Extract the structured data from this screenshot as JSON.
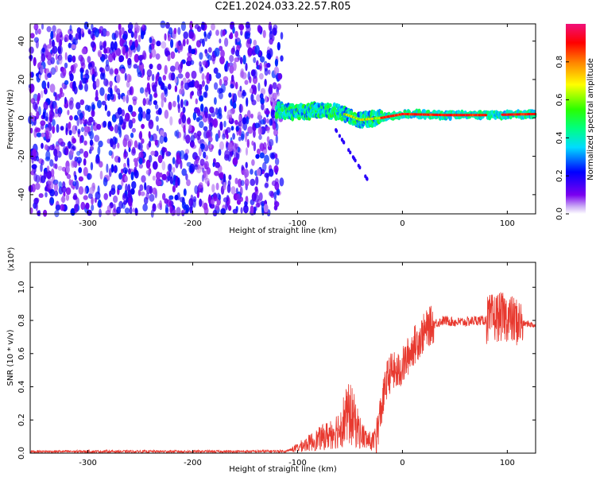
{
  "title": "C2E1.2024.033.22.57.R05",
  "chart_data": [
    {
      "type": "heatmap",
      "xlabel": "Height of straight line (km)",
      "ylabel": "Frequency (Hz)",
      "xlim": [
        -355,
        127
      ],
      "ylim": [
        -50,
        49
      ],
      "xticks": [
        -300,
        -200,
        -100,
        0,
        100
      ],
      "xtick_labels": [
        "-300",
        "-200",
        "-100",
        "0",
        "100"
      ],
      "yticks": [
        -40,
        -20,
        0,
        20,
        40
      ],
      "ytick_labels": [
        "-40",
        "-20",
        "0",
        "20",
        "40"
      ],
      "colorbar": {
        "label": "Normalized spectral amplitude",
        "range": [
          0,
          1
        ],
        "ticks": [
          0.0,
          0.2,
          0.4,
          0.6,
          0.8
        ],
        "tick_labels": [
          "0.0",
          "0.2",
          "0.4",
          "0.6",
          "0.8"
        ]
      },
      "regions": [
        {
          "name": "noise",
          "x": [
            -355,
            -115
          ],
          "freq": [
            -50,
            49
          ],
          "amplitude": [
            0.05,
            0.25
          ]
        },
        {
          "name": "signal-band",
          "x": [
            -120,
            127
          ],
          "center_freq": [
            [
              -120,
              4
            ],
            [
              -100,
              3
            ],
            [
              -80,
              4
            ],
            [
              -60,
              3
            ],
            [
              -40,
              -1
            ],
            [
              -20,
              0
            ],
            [
              0,
              2
            ],
            [
              40,
              1.5
            ],
            [
              80,
              1.5
            ],
            [
              127,
              2
            ]
          ],
          "amplitude": [
            0.3,
            1.0
          ]
        },
        {
          "name": "descending-trail",
          "x": [
            -65,
            -30
          ],
          "freq": [
            -35,
            -5
          ],
          "amplitude": [
            0.15,
            0.25
          ]
        }
      ]
    },
    {
      "type": "line",
      "xlabel": "Height of straight line (km)",
      "ylabel": "SNR (10 * v/v)",
      "y_multiplier": "(x10⁴)",
      "xlim": [
        -355,
        127
      ],
      "ylim": [
        0,
        1.15
      ],
      "xticks": [
        -300,
        -200,
        -100,
        0,
        100
      ],
      "xtick_labels": [
        "-300",
        "-200",
        "-100",
        "0",
        "100"
      ],
      "yticks": [
        0.0,
        0.2,
        0.4,
        0.6,
        0.8,
        1.0
      ],
      "ytick_labels": [
        "0.0",
        "0.2",
        "0.4",
        "0.6",
        "0.8",
        "1.0"
      ],
      "color": "#e8392f",
      "series": [
        {
          "x": [
            -355,
            -300,
            -250,
            -200,
            -150,
            -110,
            -100,
            -90,
            -80,
            -70,
            -60,
            -55,
            -50,
            -45,
            -40,
            -35,
            -30,
            -25,
            -20,
            -15,
            -10,
            -5,
            0,
            5,
            10,
            15,
            20,
            25,
            30,
            40,
            50,
            60,
            70,
            80,
            90,
            95,
            100,
            105,
            110,
            115,
            120,
            127
          ],
          "values": [
            0.01,
            0.01,
            0.01,
            0.01,
            0.01,
            0.012,
            0.04,
            0.07,
            0.1,
            0.13,
            0.18,
            0.25,
            0.28,
            0.22,
            0.14,
            0.1,
            0.08,
            0.1,
            0.27,
            0.44,
            0.5,
            0.48,
            0.52,
            0.58,
            0.64,
            0.68,
            0.72,
            0.76,
            0.78,
            0.8,
            0.79,
            0.79,
            0.8,
            0.8,
            0.82,
            0.82,
            0.82,
            0.8,
            0.79,
            0.78,
            0.78,
            0.77
          ]
        }
      ]
    }
  ]
}
